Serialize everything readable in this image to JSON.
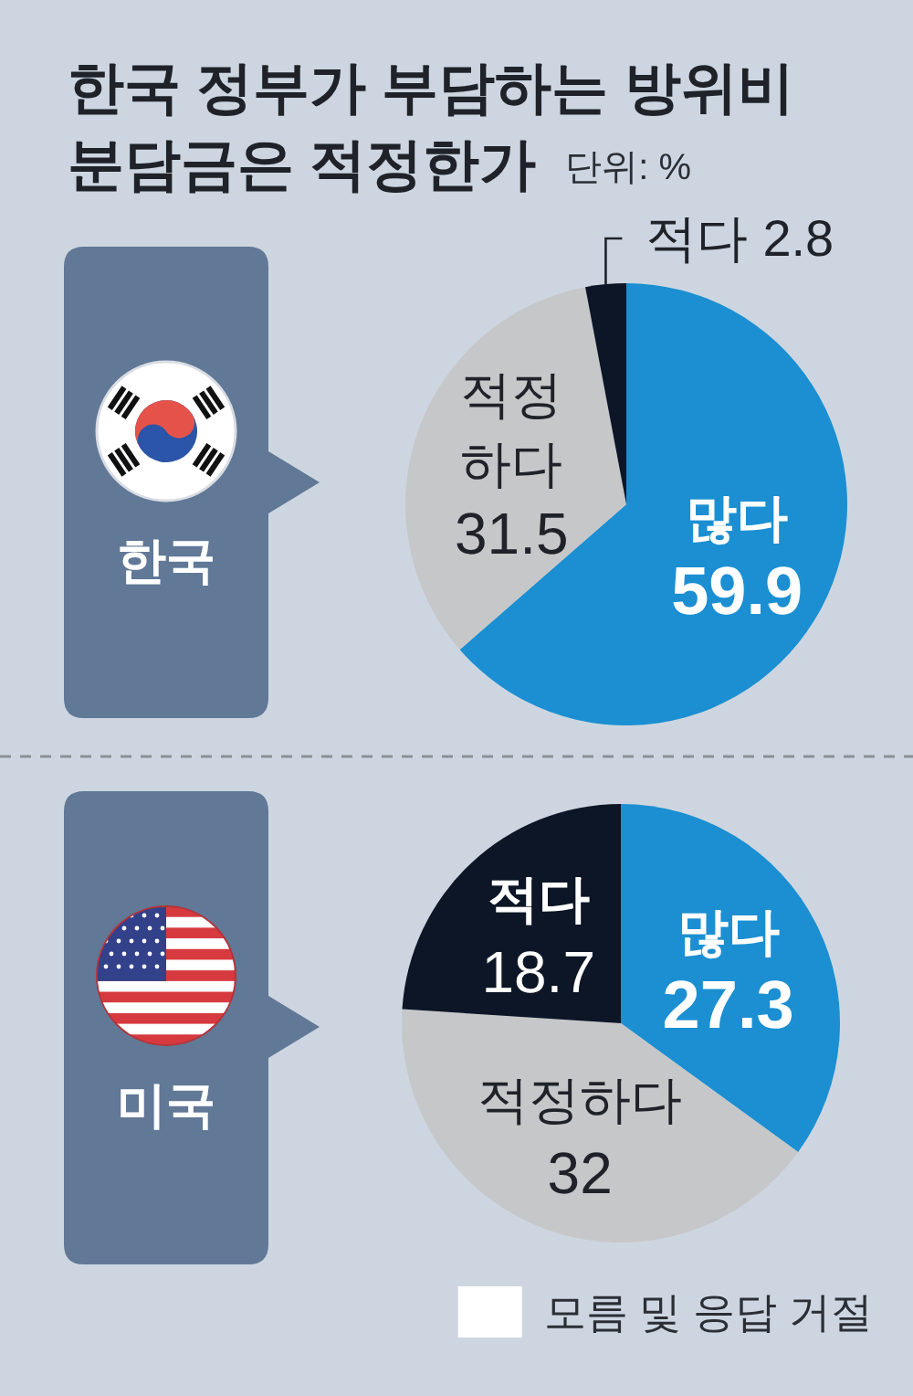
{
  "chart_data": [
    {
      "type": "pie",
      "title": "한국 정부가 부담하는 방위비 분담금은 적정한가",
      "subtitle": "단위: %",
      "annotations": [
        "한국"
      ],
      "categories": [
        "많다",
        "적정하다",
        "적다"
      ],
      "values": [
        59.9,
        31.5,
        2.8
      ],
      "colors": [
        "#1b8fd2",
        "#c6c7c9",
        "#0d1626"
      ],
      "data_labels": true
    },
    {
      "type": "pie",
      "annotations": [
        "미국"
      ],
      "categories": [
        "많다",
        "적정하다",
        "적다",
        "모름 및 응답 거절"
      ],
      "values": [
        27.3,
        32,
        18.7,
        null
      ],
      "colors": [
        "#1b8fd2",
        "#c6c7c9",
        "#0d1626",
        "#ffffff"
      ],
      "data_labels": true,
      "legend": "bottom right"
    }
  ]
}
